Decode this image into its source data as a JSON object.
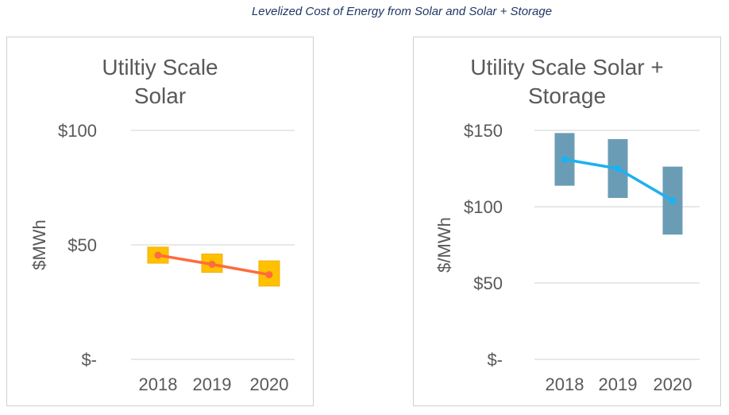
{
  "figure_title": "Levelized Cost of Energy from Solar and Solar + Storage",
  "chart_data": [
    {
      "type": "line",
      "title": "Utiltiy Scale\nSolar",
      "ylabel": "$MWh",
      "xlabel": "",
      "categories": [
        "2018",
        "2019",
        "2020"
      ],
      "ylim": [
        0,
        100
      ],
      "yticks": [
        0,
        50,
        100
      ],
      "ytick_labels": [
        "$-",
        "$50",
        "$100"
      ],
      "grid": true,
      "legend": "none",
      "series": [
        {
          "kind": "range-box",
          "color": "#ffc000",
          "edge_color": "#f0b000",
          "low": [
            42,
            38,
            32
          ],
          "high": [
            49,
            46,
            43
          ]
        },
        {
          "kind": "line",
          "color": "#ff6b3d",
          "values": [
            45.5,
            41.5,
            37
          ]
        }
      ]
    },
    {
      "type": "line",
      "title": "Utility Scale Solar +\nStorage",
      "ylabel": "$/MWh",
      "xlabel": "",
      "categories": [
        "2018",
        "2019",
        "2020"
      ],
      "ylim": [
        0,
        150
      ],
      "yticks": [
        0,
        50,
        100,
        150
      ],
      "ytick_labels": [
        "$-",
        "$50",
        "$100",
        "$150"
      ],
      "grid": true,
      "legend": "none",
      "series": [
        {
          "kind": "range-box",
          "color": "#6a9db5",
          "edge_color": "#6a9db5",
          "low": [
            114,
            106,
            82
          ],
          "high": [
            148,
            144,
            126
          ]
        },
        {
          "kind": "line",
          "color": "#1fb0f0",
          "values": [
            131,
            125,
            104
          ]
        }
      ]
    }
  ]
}
